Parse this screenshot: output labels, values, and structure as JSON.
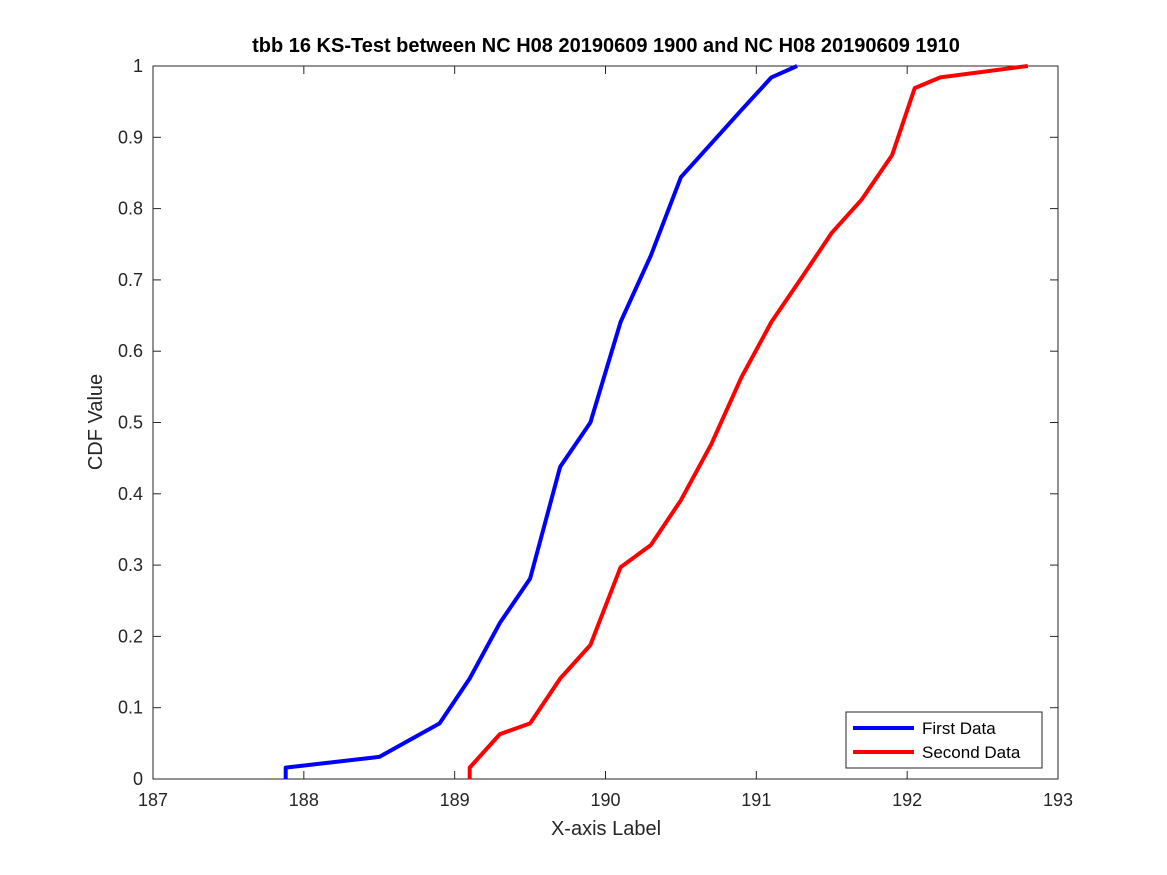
{
  "chart_data": {
    "type": "line",
    "title": "tbb 16 KS-Test between NC H08 20190609 1900 and NC H08 20190609 1910",
    "xlabel": "X-axis Label",
    "ylabel": "CDF Value",
    "xlim": [
      187,
      193
    ],
    "ylim": [
      0,
      1
    ],
    "xticks": [
      "187",
      "188",
      "189",
      "190",
      "191",
      "192",
      "193"
    ],
    "yticks": [
      "0",
      "0.1",
      "0.2",
      "0.3",
      "0.4",
      "0.5",
      "0.6",
      "0.7",
      "0.8",
      "0.9",
      "1"
    ],
    "grid": false,
    "legend_position": "bottom-right",
    "series": [
      {
        "name": "First Data",
        "color": "#0000ff",
        "x": [
          187.88,
          187.88,
          188.5,
          188.9,
          189.1,
          189.3,
          189.5,
          189.7,
          189.9,
          190.1,
          190.3,
          190.5,
          190.7,
          190.9,
          191.1,
          191.27
        ],
        "y": [
          0.0,
          0.016,
          0.031,
          0.078,
          0.141,
          0.219,
          0.281,
          0.438,
          0.5,
          0.641,
          0.734,
          0.844,
          0.891,
          0.938,
          0.984,
          1.0
        ]
      },
      {
        "name": "Second Data",
        "color": "#ff0000",
        "x": [
          189.1,
          189.1,
          189.3,
          189.5,
          189.7,
          189.9,
          190.1,
          190.3,
          190.5,
          190.7,
          190.9,
          191.1,
          191.3,
          191.5,
          191.7,
          191.9,
          192.05,
          192.22,
          192.8
        ],
        "y": [
          0.0,
          0.016,
          0.063,
          0.078,
          0.141,
          0.188,
          0.297,
          0.328,
          0.391,
          0.469,
          0.563,
          0.641,
          0.703,
          0.766,
          0.813,
          0.875,
          0.969,
          0.984,
          1.0
        ]
      }
    ]
  }
}
